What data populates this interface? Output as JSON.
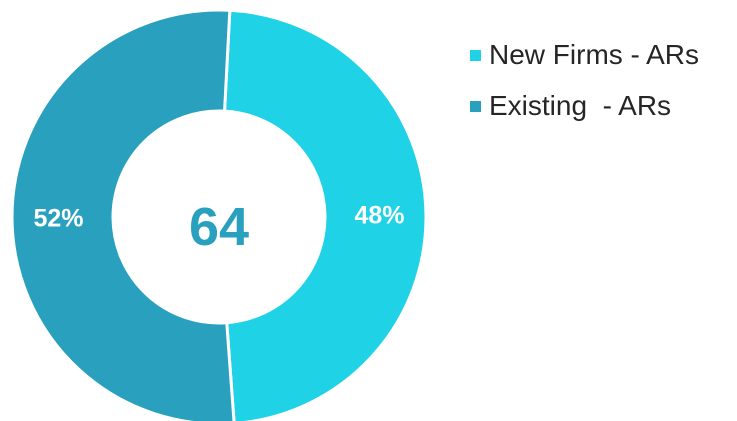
{
  "chart_data": {
    "type": "pie",
    "variant": "donut",
    "categories": [
      "New Firms - ARs",
      "Existing  - ARs"
    ],
    "values": [
      48,
      52
    ],
    "labels": [
      "48%",
      "52%"
    ],
    "colors": [
      "#1fd2e5",
      "#29a0bd"
    ],
    "center_value": "64",
    "center_color": "#29a0bd",
    "legend_position": "right-top"
  }
}
